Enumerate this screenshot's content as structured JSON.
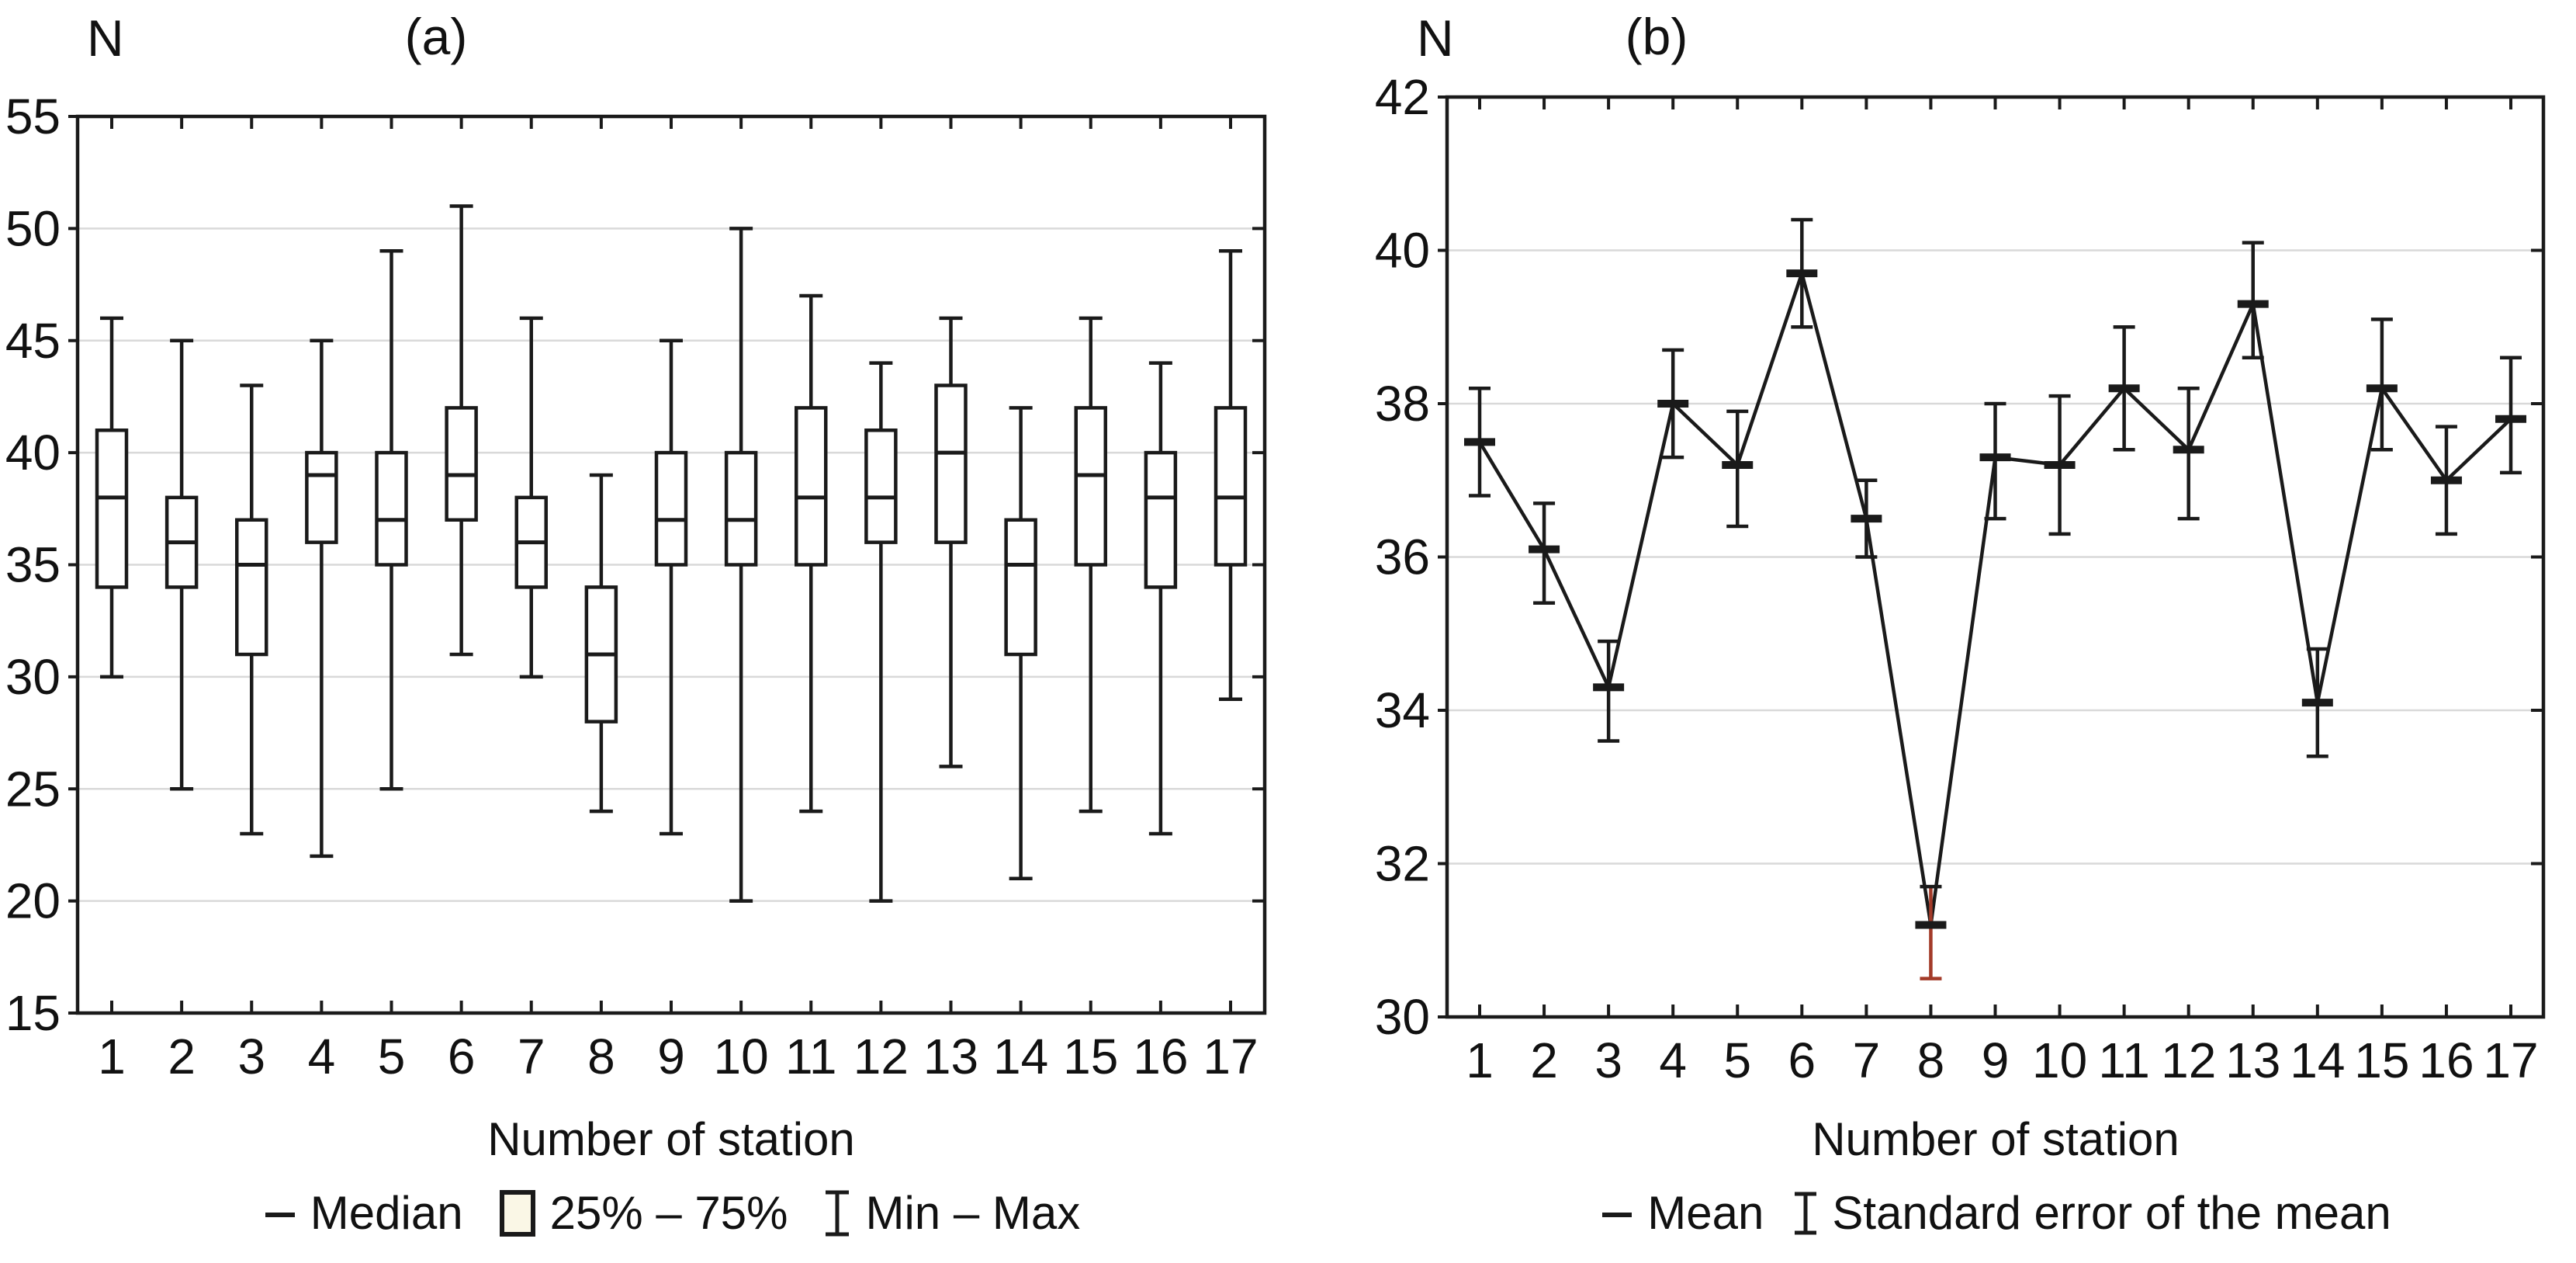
{
  "figure": {
    "background": "#ffffff",
    "frame_color": "#1a1a1a",
    "grid_color": "#d9d9d9",
    "text_color": "#111111",
    "box_fill": "#ffffff",
    "legend_box_fill": "#faf7e6",
    "error_red": "#a33a28"
  },
  "panel_a": {
    "corner_label": "N",
    "title": "(a)",
    "xlabel": "Number of station",
    "legend": {
      "median_label": "Median",
      "box_label": "25% – 75%",
      "minmax_label": "Min – Max"
    }
  },
  "panel_b": {
    "corner_label": "N",
    "title": "(b)",
    "xlabel": "Number of station",
    "legend": {
      "mean_label": "Mean",
      "se_label": "Standard error of the mean"
    }
  },
  "chart_data": [
    {
      "type": "box",
      "panel": "a",
      "title": "(a)",
      "ylabel": "N",
      "xlabel": "Number of station",
      "ylim": [
        15,
        55
      ],
      "yticks": [
        15,
        20,
        25,
        30,
        35,
        40,
        45,
        50,
        55
      ],
      "grid": true,
      "legend": [
        "Median",
        "25% – 75%",
        "Min – Max"
      ],
      "categories": [
        1,
        2,
        3,
        4,
        5,
        6,
        7,
        8,
        9,
        10,
        11,
        12,
        13,
        14,
        15,
        16,
        17
      ],
      "stations": [
        {
          "station": 1,
          "min": 30,
          "q1": 34,
          "median": 38,
          "q3": 41,
          "max": 46
        },
        {
          "station": 2,
          "min": 25,
          "q1": 34,
          "median": 36,
          "q3": 38,
          "max": 45
        },
        {
          "station": 3,
          "min": 23,
          "q1": 31,
          "median": 35,
          "q3": 37,
          "max": 43
        },
        {
          "station": 4,
          "min": 22,
          "q1": 36,
          "median": 39,
          "q3": 40,
          "max": 45
        },
        {
          "station": 5,
          "min": 25,
          "q1": 35,
          "median": 37,
          "q3": 40,
          "max": 49
        },
        {
          "station": 6,
          "min": 31,
          "q1": 37,
          "median": 39,
          "q3": 42,
          "max": 51
        },
        {
          "station": 7,
          "min": 30,
          "q1": 34,
          "median": 36,
          "q3": 38,
          "max": 46
        },
        {
          "station": 8,
          "min": 24,
          "q1": 28,
          "median": 31,
          "q3": 34,
          "max": 39
        },
        {
          "station": 9,
          "min": 23,
          "q1": 35,
          "median": 37,
          "q3": 40,
          "max": 45
        },
        {
          "station": 10,
          "min": 20,
          "q1": 35,
          "median": 37,
          "q3": 40,
          "max": 50
        },
        {
          "station": 11,
          "min": 24,
          "q1": 35,
          "median": 38,
          "q3": 42,
          "max": 47
        },
        {
          "station": 12,
          "min": 20,
          "q1": 36,
          "median": 38,
          "q3": 41,
          "max": 44
        },
        {
          "station": 13,
          "min": 26,
          "q1": 36,
          "median": 40,
          "q3": 43,
          "max": 46
        },
        {
          "station": 14,
          "min": 21,
          "q1": 31,
          "median": 35,
          "q3": 37,
          "max": 42
        },
        {
          "station": 15,
          "min": 24,
          "q1": 35,
          "median": 39,
          "q3": 42,
          "max": 46
        },
        {
          "station": 16,
          "min": 23,
          "q1": 34,
          "median": 38,
          "q3": 40,
          "max": 44
        },
        {
          "station": 17,
          "min": 29,
          "q1": 35,
          "median": 38,
          "q3": 42,
          "max": 49
        }
      ]
    },
    {
      "type": "line",
      "panel": "b",
      "title": "(b)",
      "ylabel": "N",
      "xlabel": "Number of station",
      "ylim": [
        30,
        42
      ],
      "yticks": [
        30,
        32,
        34,
        36,
        38,
        40,
        42
      ],
      "grid": true,
      "legend": [
        "Mean",
        "Standard error of the mean"
      ],
      "categories": [
        1,
        2,
        3,
        4,
        5,
        6,
        7,
        8,
        9,
        10,
        11,
        12,
        13,
        14,
        15,
        16,
        17
      ],
      "points": [
        {
          "station": 1,
          "mean": 37.5,
          "lo": 36.8,
          "hi": 38.2
        },
        {
          "station": 2,
          "mean": 36.1,
          "lo": 35.4,
          "hi": 36.7
        },
        {
          "station": 3,
          "mean": 34.3,
          "lo": 33.6,
          "hi": 34.9
        },
        {
          "station": 4,
          "mean": 38.0,
          "lo": 37.3,
          "hi": 38.7
        },
        {
          "station": 5,
          "mean": 37.2,
          "lo": 36.4,
          "hi": 37.9
        },
        {
          "station": 6,
          "mean": 39.7,
          "lo": 39.0,
          "hi": 40.4
        },
        {
          "station": 7,
          "mean": 36.5,
          "lo": 36.0,
          "hi": 37.0
        },
        {
          "station": 8,
          "mean": 31.2,
          "lo": 30.5,
          "hi": 31.7,
          "lo_color": "red"
        },
        {
          "station": 9,
          "mean": 37.3,
          "lo": 36.5,
          "hi": 38.0
        },
        {
          "station": 10,
          "mean": 37.2,
          "lo": 36.3,
          "hi": 38.1
        },
        {
          "station": 11,
          "mean": 38.2,
          "lo": 37.4,
          "hi": 39.0
        },
        {
          "station": 12,
          "mean": 37.4,
          "lo": 36.5,
          "hi": 38.2
        },
        {
          "station": 13,
          "mean": 39.3,
          "lo": 38.6,
          "hi": 40.1
        },
        {
          "station": 14,
          "mean": 34.1,
          "lo": 33.4,
          "hi": 34.8
        },
        {
          "station": 15,
          "mean": 38.2,
          "lo": 37.4,
          "hi": 39.1
        },
        {
          "station": 16,
          "mean": 37.0,
          "lo": 36.3,
          "hi": 37.7
        },
        {
          "station": 17,
          "mean": 37.8,
          "lo": 37.1,
          "hi": 38.6
        }
      ]
    }
  ]
}
